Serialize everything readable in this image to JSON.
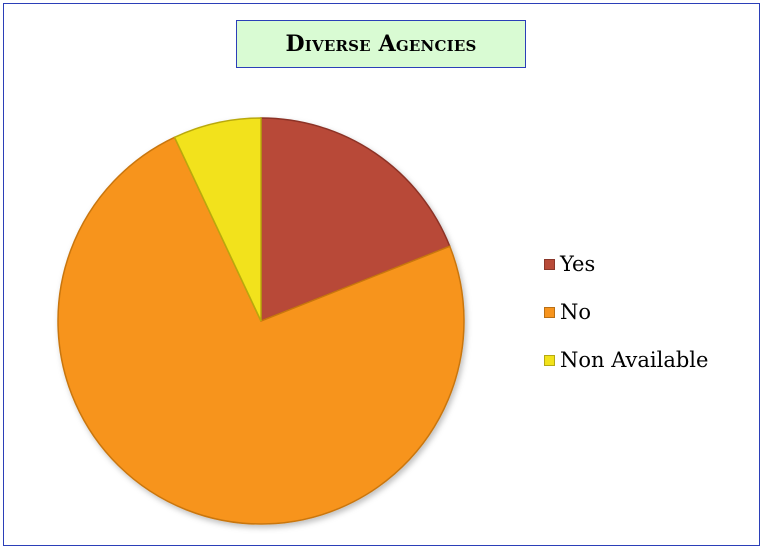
{
  "chart_data": {
    "type": "pie",
    "title": "Diverse Agencies",
    "categories": [
      "Yes",
      "No",
      "Non Available"
    ],
    "values": [
      19,
      74,
      7
    ],
    "colors": [
      "#b84a38",
      "#f7941d",
      "#f2e21a"
    ],
    "edge_colors": [
      "#8c3326",
      "#c9760f",
      "#b9a90f"
    ],
    "legend_position": "right"
  }
}
